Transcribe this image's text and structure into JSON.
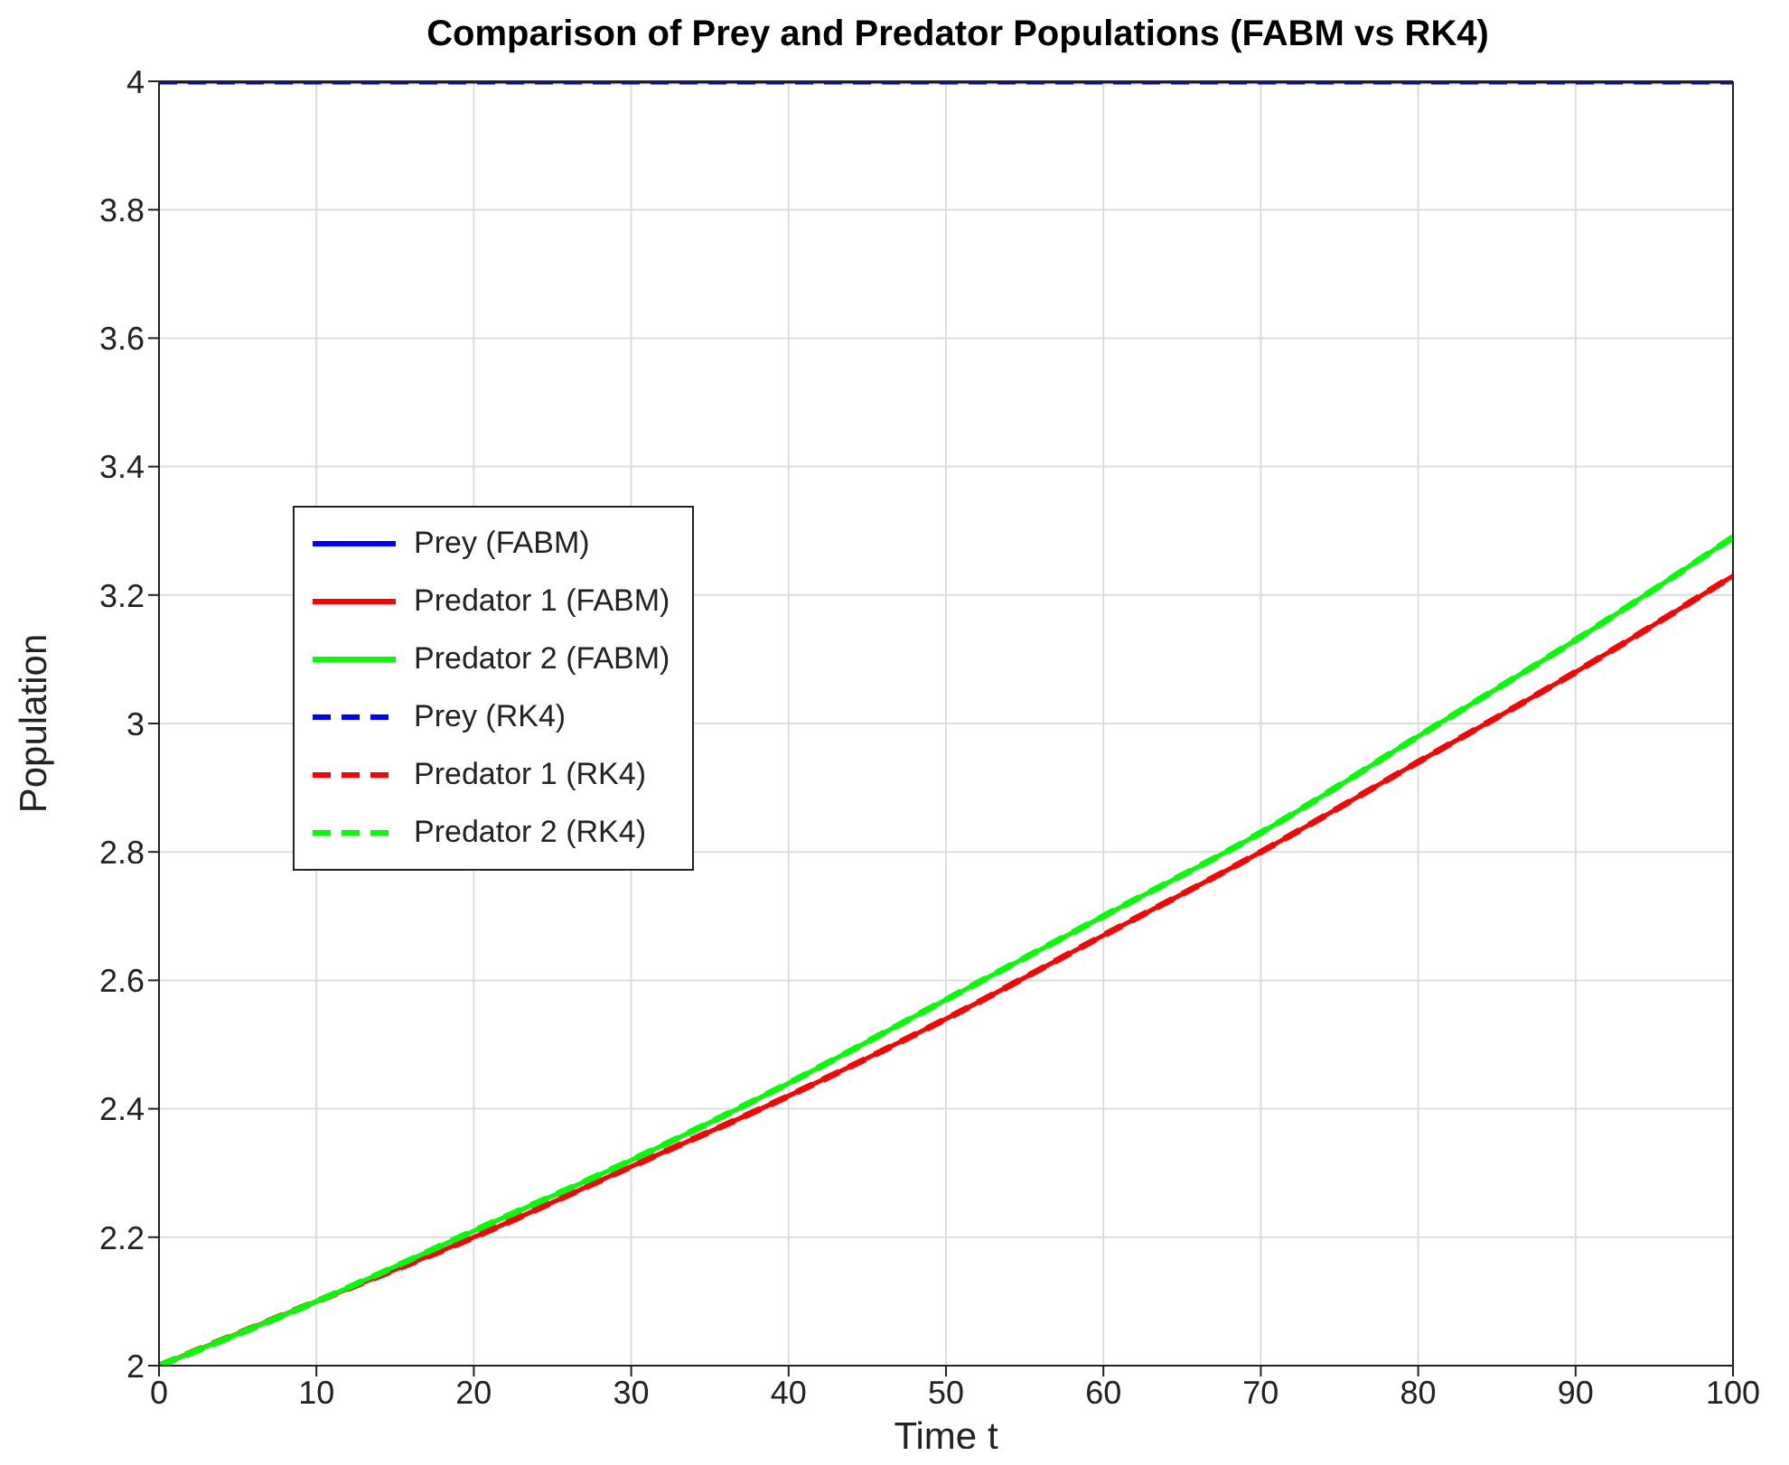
{
  "chart_data": {
    "type": "line",
    "title": "Comparison of Prey and Predator Populations (FABM vs RK4)",
    "xlabel": "Time t",
    "ylabel": "Population",
    "x": [
      0,
      10,
      20,
      30,
      40,
      50,
      60,
      70,
      80,
      90,
      100
    ],
    "series": [
      {
        "name": "Prey (FABM)",
        "color": "#0000ff",
        "values": [
          4,
          4,
          4,
          4,
          4,
          4,
          4,
          4,
          4,
          4,
          4
        ]
      },
      {
        "name": "Predator 1 (FABM)",
        "color": "#ff0000",
        "values": [
          2,
          2.1,
          2.2,
          2.31,
          2.42,
          2.54,
          2.67,
          2.8,
          2.94,
          3.08,
          3.23
        ]
      },
      {
        "name": "Predator 2 (FABM)",
        "color": "#00ff00",
        "values": [
          2,
          2.1,
          2.21,
          2.32,
          2.44,
          2.57,
          2.7,
          2.83,
          2.98,
          3.13,
          3.29
        ]
      },
      {
        "name": "Prey (RK4)",
        "color": "#0000ff",
        "line_style": "dashed",
        "values": [
          4,
          4,
          4,
          4,
          4,
          4,
          4,
          4,
          4,
          4,
          4
        ]
      },
      {
        "name": "Predator 1 (RK4)",
        "color": "#ff0000",
        "line_style": "dashed",
        "values": [
          2,
          2.1,
          2.2,
          2.31,
          2.42,
          2.54,
          2.67,
          2.8,
          2.94,
          3.08,
          3.23
        ]
      },
      {
        "name": "Predator 2 (RK4)",
        "color": "#00ff00",
        "line_style": "dashed",
        "values": [
          2,
          2.1,
          2.21,
          2.32,
          2.44,
          2.57,
          2.7,
          2.83,
          2.98,
          3.13,
          3.29
        ]
      }
    ],
    "xlim": [
      0,
      100
    ],
    "xticks": [
      0,
      10,
      20,
      30,
      40,
      50,
      60,
      70,
      80,
      90,
      100
    ],
    "ylim": [
      2,
      4
    ],
    "yticks": [
      2,
      2.2,
      2.4,
      2.6,
      2.8,
      3,
      3.2,
      3.4,
      3.6,
      3.8,
      4
    ],
    "grid": true,
    "legend": "left",
    "marker": "none",
    "line_style": "solid"
  }
}
